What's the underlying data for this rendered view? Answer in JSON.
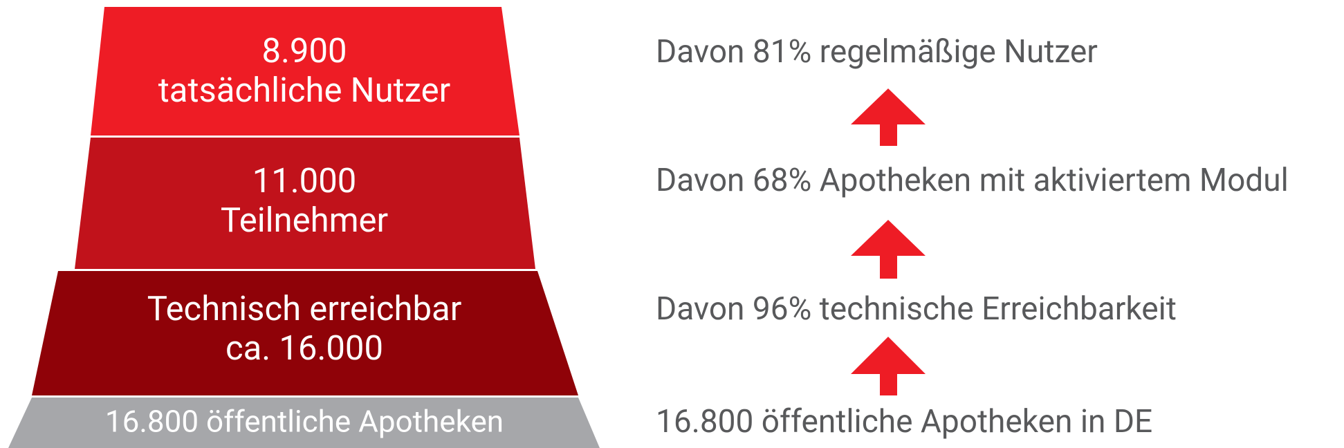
{
  "funnel": [
    {
      "lines": [
        "8.900",
        "tatsächliche Nutzer"
      ]
    },
    {
      "lines": [
        "11.000",
        "Teilnehmer"
      ]
    },
    {
      "lines": [
        "Technisch erreichbar",
        "ca. 16.000"
      ]
    },
    {
      "lines": [
        "16.800 öffentliche Apotheken"
      ]
    }
  ],
  "notes": [
    "Davon 81% regelmäßige Nutzer",
    "Davon 68% Apotheken mit aktiviertem Modul",
    "Davon 96% technische Erreichbarkeit",
    "16.800 öffentliche Apotheken in DE"
  ]
}
